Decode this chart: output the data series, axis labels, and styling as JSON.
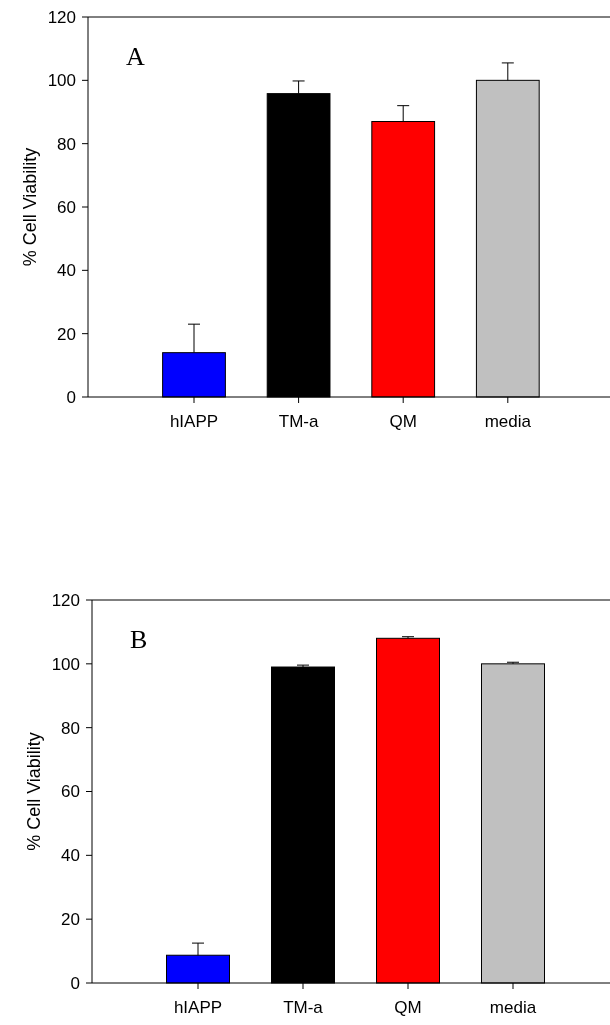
{
  "chart_data": [
    {
      "type": "bar",
      "ylabel": "% Cell Viability",
      "annotations": [
        "A"
      ],
      "categories": [
        "hIAPP",
        "TM-a",
        "QM",
        "media"
      ],
      "values": [
        14,
        95.8,
        87,
        100
      ],
      "colors": [
        "#0000ff",
        "#000000",
        "#ff0000",
        "#c0c0c0"
      ],
      "errors": [
        [
          14,
          23
        ],
        [
          95.8,
          99.8
        ],
        [
          87,
          92
        ],
        [
          100,
          105.5
        ]
      ],
      "ylim": [
        0,
        120
      ],
      "yticks": [
        0,
        20,
        40,
        60,
        80,
        100,
        120
      ]
    },
    {
      "type": "bar",
      "ylabel": "% Cell Viability",
      "annotations": [
        "B"
      ],
      "categories": [
        "hIAPP",
        "TM-a",
        "QM",
        "media"
      ],
      "values": [
        8.7,
        99,
        108,
        100
      ],
      "colors": [
        "#0000ff",
        "#000000",
        "#ff0000",
        "#c0c0c0"
      ],
      "errors": [
        [
          8.7,
          12.5
        ],
        [
          99,
          99.6
        ],
        [
          108,
          108.5
        ],
        [
          100,
          100.5
        ]
      ],
      "ylim": [
        0,
        120
      ],
      "yticks": [
        0,
        20,
        40,
        60,
        80,
        100,
        120
      ]
    }
  ]
}
